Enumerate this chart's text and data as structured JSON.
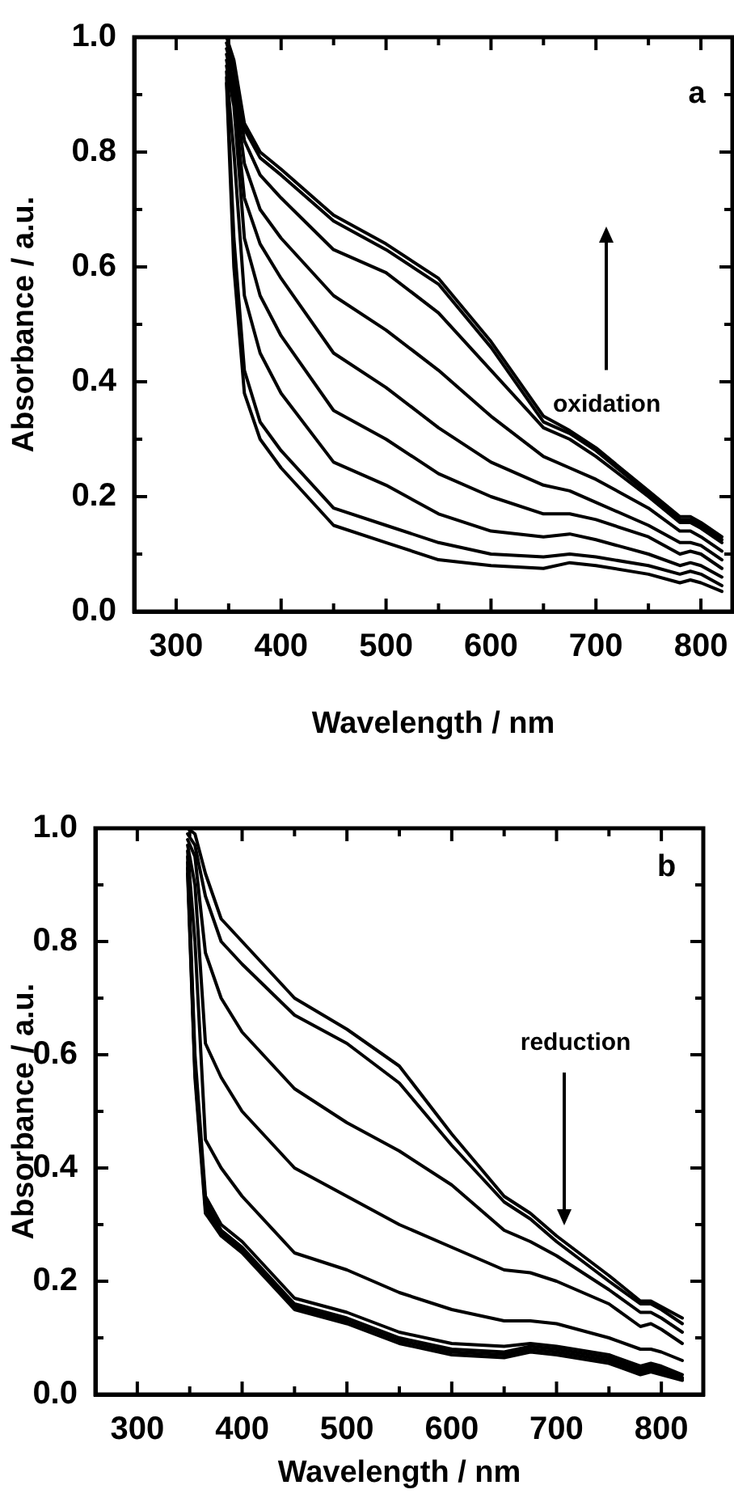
{
  "chart_data": [
    {
      "type": "line",
      "xlabel": "Wavelength / nm",
      "ylabel": "Absorbance / a.u.",
      "annotations": [
        "a",
        "oxidation"
      ],
      "x": [
        348,
        355,
        365,
        380,
        400,
        450,
        500,
        550,
        600,
        650,
        675,
        700,
        750,
        780,
        790,
        800,
        820
      ],
      "xlim": [
        260,
        830
      ],
      "xticks": [
        300,
        {
          "value": 350,
          "label": null
        },
        400,
        {
          "value": 450,
          "label": null
        },
        500,
        {
          "value": 550,
          "label": null
        },
        600,
        {
          "value": 650,
          "label": null
        },
        700,
        {
          "value": 750,
          "label": null
        },
        800
      ],
      "ylim": [
        0,
        1
      ],
      "yticks": [
        {
          "value": 0,
          "label": "0.0"
        },
        {
          "value": 0.1,
          "label": null
        },
        0.2,
        {
          "value": 0.3,
          "label": null
        },
        0.4,
        {
          "value": 0.5,
          "label": null
        },
        0.6,
        {
          "value": 0.7,
          "label": null
        },
        0.8,
        {
          "value": 0.9,
          "label": null
        },
        {
          "value": 1,
          "label": "1.0"
        }
      ],
      "grid": false,
      "legend": false,
      "marker": "none",
      "line_style": "solid",
      "series": [
        {
          "color": "#000000",
          "values": [
            0.92,
            0.6,
            0.38,
            0.3,
            0.25,
            0.15,
            0.12,
            0.09,
            0.08,
            0.075,
            0.085,
            0.08,
            0.065,
            0.05,
            0.055,
            0.05,
            0.035
          ]
        },
        {
          "color": "#000000",
          "values": [
            0.93,
            0.65,
            0.42,
            0.33,
            0.28,
            0.18,
            0.15,
            0.12,
            0.1,
            0.095,
            0.1,
            0.095,
            0.08,
            0.065,
            0.07,
            0.065,
            0.045
          ]
        },
        {
          "color": "#000000",
          "values": [
            0.94,
            0.8,
            0.55,
            0.45,
            0.38,
            0.26,
            0.22,
            0.17,
            0.14,
            0.13,
            0.135,
            0.125,
            0.1,
            0.08,
            0.085,
            0.08,
            0.06
          ]
        },
        {
          "color": "#000000",
          "values": [
            0.95,
            0.88,
            0.65,
            0.55,
            0.48,
            0.35,
            0.3,
            0.24,
            0.2,
            0.17,
            0.17,
            0.16,
            0.13,
            0.1,
            0.105,
            0.1,
            0.075
          ]
        },
        {
          "color": "#000000",
          "values": [
            0.96,
            0.9,
            0.72,
            0.64,
            0.58,
            0.45,
            0.39,
            0.32,
            0.26,
            0.22,
            0.21,
            0.19,
            0.15,
            0.12,
            0.12,
            0.115,
            0.09
          ]
        },
        {
          "color": "#000000",
          "values": [
            0.97,
            0.92,
            0.78,
            0.7,
            0.65,
            0.55,
            0.49,
            0.42,
            0.34,
            0.27,
            0.25,
            0.23,
            0.18,
            0.14,
            0.14,
            0.13,
            0.105
          ]
        },
        {
          "color": "#000000",
          "values": [
            0.98,
            0.94,
            0.82,
            0.76,
            0.72,
            0.63,
            0.59,
            0.52,
            0.42,
            0.32,
            0.3,
            0.27,
            0.2,
            0.155,
            0.155,
            0.145,
            0.12
          ]
        },
        {
          "color": "#000000",
          "values": [
            0.99,
            0.95,
            0.84,
            0.79,
            0.76,
            0.68,
            0.63,
            0.57,
            0.46,
            0.33,
            0.31,
            0.28,
            0.205,
            0.16,
            0.16,
            0.15,
            0.125
          ]
        },
        {
          "color": "#000000",
          "values": [
            1.0,
            0.96,
            0.85,
            0.8,
            0.77,
            0.69,
            0.64,
            0.58,
            0.47,
            0.34,
            0.315,
            0.285,
            0.21,
            0.165,
            0.165,
            0.155,
            0.13
          ]
        }
      ]
    },
    {
      "type": "line",
      "xlabel": "Wavelength / nm",
      "ylabel": "Absorbance / a.u.",
      "annotations": [
        "b",
        "reduction"
      ],
      "x": [
        348,
        355,
        365,
        380,
        400,
        450,
        500,
        550,
        600,
        650,
        675,
        700,
        750,
        780,
        790,
        800,
        820
      ],
      "xlim": [
        260,
        840
      ],
      "xticks": [
        300,
        {
          "value": 350,
          "label": null
        },
        400,
        {
          "value": 450,
          "label": null
        },
        500,
        {
          "value": 550,
          "label": null
        },
        600,
        {
          "value": 650,
          "label": null
        },
        700,
        {
          "value": 750,
          "label": null
        },
        800
      ],
      "ylim": [
        0,
        1
      ],
      "yticks": [
        {
          "value": 0,
          "label": "0.0"
        },
        {
          "value": 0.1,
          "label": null
        },
        0.2,
        {
          "value": 0.3,
          "label": null
        },
        0.4,
        {
          "value": 0.5,
          "label": null
        },
        0.6,
        {
          "value": 0.7,
          "label": null
        },
        0.8,
        {
          "value": 0.9,
          "label": null
        },
        {
          "value": 1,
          "label": "1.0"
        }
      ],
      "grid": false,
      "legend": false,
      "marker": "none",
      "line_style": "solid",
      "series": [
        {
          "color": "#000000",
          "values": [
            1.0,
            0.99,
            0.92,
            0.84,
            0.8,
            0.7,
            0.645,
            0.58,
            0.46,
            0.35,
            0.32,
            0.28,
            0.21,
            0.165,
            0.165,
            0.155,
            0.135
          ]
        },
        {
          "color": "#000000",
          "values": [
            0.99,
            0.97,
            0.88,
            0.8,
            0.76,
            0.67,
            0.62,
            0.55,
            0.44,
            0.34,
            0.31,
            0.27,
            0.2,
            0.16,
            0.16,
            0.15,
            0.125
          ]
        },
        {
          "color": "#000000",
          "values": [
            0.98,
            0.95,
            0.78,
            0.7,
            0.64,
            0.54,
            0.48,
            0.43,
            0.37,
            0.29,
            0.27,
            0.245,
            0.185,
            0.145,
            0.145,
            0.135,
            0.11
          ]
        },
        {
          "color": "#000000",
          "values": [
            0.97,
            0.9,
            0.62,
            0.56,
            0.5,
            0.4,
            0.35,
            0.3,
            0.26,
            0.22,
            0.215,
            0.2,
            0.16,
            0.12,
            0.125,
            0.115,
            0.09
          ]
        },
        {
          "color": "#000000",
          "values": [
            0.96,
            0.8,
            0.45,
            0.4,
            0.35,
            0.25,
            0.22,
            0.18,
            0.15,
            0.13,
            0.13,
            0.125,
            0.1,
            0.08,
            0.08,
            0.075,
            0.06
          ]
        },
        {
          "color": "#000000",
          "values": [
            0.95,
            0.6,
            0.35,
            0.3,
            0.27,
            0.17,
            0.145,
            0.11,
            0.09,
            0.085,
            0.09,
            0.085,
            0.07,
            0.05,
            0.055,
            0.05,
            0.035
          ]
        },
        {
          "color": "#000000",
          "values": [
            0.94,
            0.58,
            0.34,
            0.29,
            0.26,
            0.16,
            0.135,
            0.1,
            0.08,
            0.075,
            0.085,
            0.08,
            0.065,
            0.045,
            0.05,
            0.045,
            0.03
          ]
        },
        {
          "color": "#000000",
          "values": [
            0.93,
            0.57,
            0.33,
            0.285,
            0.255,
            0.155,
            0.13,
            0.095,
            0.075,
            0.07,
            0.08,
            0.075,
            0.06,
            0.04,
            0.045,
            0.04,
            0.028
          ]
        },
        {
          "color": "#000000",
          "values": [
            0.92,
            0.56,
            0.32,
            0.28,
            0.25,
            0.15,
            0.125,
            0.09,
            0.07,
            0.065,
            0.075,
            0.07,
            0.055,
            0.035,
            0.04,
            0.035,
            0.025
          ]
        }
      ]
    }
  ]
}
